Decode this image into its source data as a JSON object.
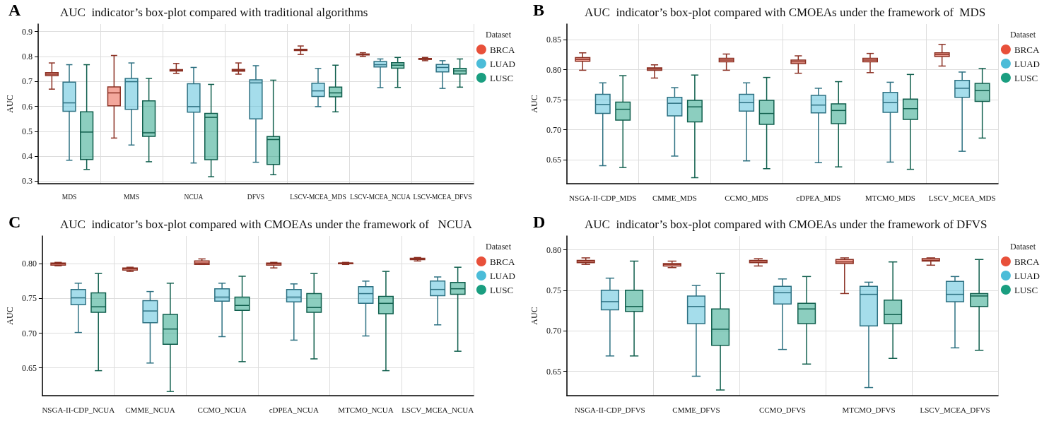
{
  "chart_data": [
    {
      "type": "box",
      "annotations": [
        "A"
      ],
      "title": "AUC  indicator’s box-plot compared with traditional algorithms",
      "ylabel": "AUC",
      "legend_title": "Dataset",
      "legend": "right",
      "grid": true,
      "categories": [
        "MDS",
        "MMS",
        "NCUA",
        "DFVS",
        "LSCV-MCEA_MDS",
        "LSCV-MCEA_NCUA",
        "LSCV-MCEA_DFVS"
      ],
      "ylim": [
        0.29,
        0.93
      ],
      "yticks": [
        0.3,
        0.4,
        0.5,
        0.6,
        0.7,
        0.8,
        0.9
      ],
      "series": [
        {
          "name": "BRCA",
          "color": "#e8503a",
          "boxes": [
            {
              "low": 0.669,
              "q1": 0.723,
              "median": 0.729,
              "q3": 0.735,
              "high": 0.774
            },
            {
              "low": 0.473,
              "q1": 0.602,
              "median": 0.654,
              "q3": 0.678,
              "high": 0.804
            },
            {
              "low": 0.732,
              "q1": 0.742,
              "median": 0.745,
              "q3": 0.747,
              "high": 0.772
            },
            {
              "low": 0.729,
              "q1": 0.741,
              "median": 0.745,
              "q3": 0.748,
              "high": 0.774
            },
            {
              "low": 0.808,
              "q1": 0.824,
              "median": 0.827,
              "q3": 0.829,
              "high": 0.842
            },
            {
              "low": 0.8,
              "q1": 0.806,
              "median": 0.808,
              "q3": 0.81,
              "high": 0.815
            },
            {
              "low": 0.783,
              "q1": 0.788,
              "median": 0.79,
              "q3": 0.792,
              "high": 0.796
            }
          ]
        },
        {
          "name": "LUAD",
          "color": "#4bbcd8",
          "boxes": [
            {
              "low": 0.384,
              "q1": 0.58,
              "median": 0.614,
              "q3": 0.697,
              "high": 0.767
            },
            {
              "low": 0.445,
              "q1": 0.588,
              "median": 0.699,
              "q3": 0.712,
              "high": 0.774
            },
            {
              "low": 0.373,
              "q1": 0.577,
              "median": 0.599,
              "q3": 0.691,
              "high": 0.756
            },
            {
              "low": 0.376,
              "q1": 0.55,
              "median": 0.694,
              "q3": 0.706,
              "high": 0.763
            },
            {
              "low": 0.599,
              "q1": 0.64,
              "median": 0.662,
              "q3": 0.693,
              "high": 0.752
            },
            {
              "low": 0.675,
              "q1": 0.758,
              "median": 0.767,
              "q3": 0.78,
              "high": 0.79
            },
            {
              "low": 0.672,
              "q1": 0.738,
              "median": 0.756,
              "q3": 0.768,
              "high": 0.783
            }
          ]
        },
        {
          "name": "LUSC",
          "color": "#1a9e80",
          "boxes": [
            {
              "low": 0.347,
              "q1": 0.387,
              "median": 0.497,
              "q3": 0.578,
              "high": 0.767
            },
            {
              "low": 0.378,
              "q1": 0.48,
              "median": 0.494,
              "q3": 0.622,
              "high": 0.712
            },
            {
              "low": 0.318,
              "q1": 0.386,
              "median": 0.556,
              "q3": 0.572,
              "high": 0.688
            },
            {
              "low": 0.326,
              "q1": 0.367,
              "median": 0.467,
              "q3": 0.479,
              "high": 0.705
            },
            {
              "low": 0.578,
              "q1": 0.638,
              "median": 0.654,
              "q3": 0.677,
              "high": 0.765
            },
            {
              "low": 0.676,
              "q1": 0.753,
              "median": 0.765,
              "q3": 0.775,
              "high": 0.796
            },
            {
              "low": 0.677,
              "q1": 0.73,
              "median": 0.742,
              "q3": 0.752,
              "high": 0.79
            }
          ]
        }
      ]
    },
    {
      "type": "box",
      "annotations": [
        "B"
      ],
      "title": "AUC  indicator’s box-plot compared with CMOEAs under the framework of  MDS",
      "ylabel": "AUC",
      "legend_title": "Dataset",
      "legend": "right",
      "grid": true,
      "categories": [
        "NSGA-II-CDP_MDS",
        "CMME_MDS",
        "CCMO_MDS",
        "cDPEA_MDS",
        "MTCMO_MDS",
        "LSCV_MCEA_MDS"
      ],
      "ylim": [
        0.61,
        0.876
      ],
      "yticks": [
        {
          "value": 0.65,
          "label": "0.65"
        },
        {
          "value": 0.7,
          "label": "0.70"
        },
        {
          "value": 0.75,
          "label": "0.75"
        },
        {
          "value": 0.8,
          "label": "0.80"
        },
        {
          "value": 0.85,
          "label": "0.85"
        }
      ],
      "series": [
        {
          "name": "BRCA",
          "color": "#e8503a",
          "boxes": [
            {
              "low": 0.799,
              "q1": 0.814,
              "median": 0.817,
              "q3": 0.82,
              "high": 0.828
            },
            {
              "low": 0.786,
              "q1": 0.799,
              "median": 0.801,
              "q3": 0.803,
              "high": 0.808
            },
            {
              "low": 0.799,
              "q1": 0.813,
              "median": 0.816,
              "q3": 0.819,
              "high": 0.826
            },
            {
              "low": 0.794,
              "q1": 0.81,
              "median": 0.813,
              "q3": 0.816,
              "high": 0.823
            },
            {
              "low": 0.795,
              "q1": 0.813,
              "median": 0.816,
              "q3": 0.819,
              "high": 0.827
            },
            {
              "low": 0.806,
              "q1": 0.822,
              "median": 0.825,
              "q3": 0.828,
              "high": 0.842
            }
          ]
        },
        {
          "name": "LUAD",
          "color": "#4bbcd8",
          "boxes": [
            {
              "low": 0.64,
              "q1": 0.727,
              "median": 0.742,
              "q3": 0.759,
              "high": 0.778
            },
            {
              "low": 0.656,
              "q1": 0.723,
              "median": 0.744,
              "q3": 0.754,
              "high": 0.77
            },
            {
              "low": 0.648,
              "q1": 0.731,
              "median": 0.745,
              "q3": 0.759,
              "high": 0.778
            },
            {
              "low": 0.645,
              "q1": 0.728,
              "median": 0.741,
              "q3": 0.757,
              "high": 0.769
            },
            {
              "low": 0.646,
              "q1": 0.729,
              "median": 0.745,
              "q3": 0.762,
              "high": 0.779
            },
            {
              "low": 0.664,
              "q1": 0.754,
              "median": 0.769,
              "q3": 0.782,
              "high": 0.796
            }
          ]
        },
        {
          "name": "LUSC",
          "color": "#1a9e80",
          "boxes": [
            {
              "low": 0.637,
              "q1": 0.716,
              "median": 0.734,
              "q3": 0.746,
              "high": 0.79
            },
            {
              "low": 0.62,
              "q1": 0.713,
              "median": 0.738,
              "q3": 0.749,
              "high": 0.791
            },
            {
              "low": 0.635,
              "q1": 0.709,
              "median": 0.727,
              "q3": 0.749,
              "high": 0.787
            },
            {
              "low": 0.638,
              "q1": 0.71,
              "median": 0.732,
              "q3": 0.743,
              "high": 0.78
            },
            {
              "low": 0.634,
              "q1": 0.717,
              "median": 0.735,
              "q3": 0.751,
              "high": 0.792
            },
            {
              "low": 0.686,
              "q1": 0.747,
              "median": 0.765,
              "q3": 0.777,
              "high": 0.802
            }
          ]
        }
      ]
    },
    {
      "type": "box",
      "annotations": [
        "C"
      ],
      "title": "AUC  indicator’s box-plot compared with CMOEAs under the framework of   NCUA",
      "ylabel": "AUC",
      "legend_title": "Dataset",
      "legend": "right",
      "grid": true,
      "categories": [
        "NSGA-II-CDP_NCUA",
        "CMME_NCUA",
        "CCMO_NCUA",
        "cDPEA_NCUA",
        "MTCMO_NCUA",
        "LSCV_MCEA_NCUA"
      ],
      "ylim": [
        0.61,
        0.84
      ],
      "yticks": [
        {
          "value": 0.65,
          "label": "0.65"
        },
        {
          "value": 0.7,
          "label": "0.70"
        },
        {
          "value": 0.75,
          "label": "0.75"
        },
        {
          "value": 0.8,
          "label": "0.80"
        }
      ],
      "series": [
        {
          "name": "BRCA",
          "color": "#e8503a",
          "boxes": [
            {
              "low": 0.797,
              "q1": 0.798,
              "median": 0.8,
              "q3": 0.801,
              "high": 0.802
            },
            {
              "low": 0.789,
              "q1": 0.791,
              "median": 0.793,
              "q3": 0.794,
              "high": 0.795
            },
            {
              "low": 0.799,
              "q1": 0.799,
              "median": 0.801,
              "q3": 0.804,
              "high": 0.807
            },
            {
              "low": 0.794,
              "q1": 0.798,
              "median": 0.8,
              "q3": 0.801,
              "high": 0.802
            },
            {
              "low": 0.799,
              "q1": 0.8,
              "median": 0.801,
              "q3": 0.801,
              "high": 0.802
            },
            {
              "low": 0.804,
              "q1": 0.806,
              "median": 0.807,
              "q3": 0.808,
              "high": 0.809
            }
          ]
        },
        {
          "name": "LUAD",
          "color": "#4bbcd8",
          "boxes": [
            {
              "low": 0.701,
              "q1": 0.741,
              "median": 0.751,
              "q3": 0.763,
              "high": 0.772
            },
            {
              "low": 0.657,
              "q1": 0.715,
              "median": 0.732,
              "q3": 0.747,
              "high": 0.76
            },
            {
              "low": 0.695,
              "q1": 0.746,
              "median": 0.752,
              "q3": 0.764,
              "high": 0.772
            },
            {
              "low": 0.69,
              "q1": 0.745,
              "median": 0.752,
              "q3": 0.763,
              "high": 0.771
            },
            {
              "low": 0.696,
              "q1": 0.743,
              "median": 0.757,
              "q3": 0.767,
              "high": 0.775
            },
            {
              "low": 0.712,
              "q1": 0.754,
              "median": 0.763,
              "q3": 0.775,
              "high": 0.781
            }
          ]
        },
        {
          "name": "LUSC",
          "color": "#1a9e80",
          "boxes": [
            {
              "low": 0.646,
              "q1": 0.73,
              "median": 0.738,
              "q3": 0.758,
              "high": 0.786
            },
            {
              "low": 0.616,
              "q1": 0.684,
              "median": 0.706,
              "q3": 0.727,
              "high": 0.772
            },
            {
              "low": 0.659,
              "q1": 0.733,
              "median": 0.74,
              "q3": 0.752,
              "high": 0.782
            },
            {
              "low": 0.663,
              "q1": 0.73,
              "median": 0.737,
              "q3": 0.757,
              "high": 0.786
            },
            {
              "low": 0.646,
              "q1": 0.728,
              "median": 0.743,
              "q3": 0.753,
              "high": 0.789
            },
            {
              "low": 0.674,
              "q1": 0.756,
              "median": 0.764,
              "q3": 0.773,
              "high": 0.795
            }
          ]
        }
      ]
    },
    {
      "type": "box",
      "annotations": [
        "D"
      ],
      "title": "AUC  indicator’s box-plot compared with CMOEAs under the framework of DFVS",
      "ylabel": "AUC",
      "legend_title": "Dataset",
      "legend": "right",
      "grid": true,
      "categories": [
        "NSGA-II-CDP_DFVS",
        "CMME_DFVS",
        "CCMO_DFVS",
        "MTCMO_DFVS",
        "LSCV_MCEA_DFVS"
      ],
      "ylim": [
        0.62,
        0.817
      ],
      "yticks": [
        {
          "value": 0.65,
          "label": "0.65"
        },
        {
          "value": 0.7,
          "label": "0.70"
        },
        {
          "value": 0.75,
          "label": "0.75"
        },
        {
          "value": 0.8,
          "label": "0.80"
        }
      ],
      "series": [
        {
          "name": "BRCA",
          "color": "#e8503a",
          "boxes": [
            {
              "low": 0.782,
              "q1": 0.784,
              "median": 0.786,
              "q3": 0.787,
              "high": 0.79
            },
            {
              "low": 0.778,
              "q1": 0.78,
              "median": 0.782,
              "q3": 0.783,
              "high": 0.786
            },
            {
              "low": 0.78,
              "q1": 0.784,
              "median": 0.786,
              "q3": 0.787,
              "high": 0.789
            },
            {
              "low": 0.746,
              "q1": 0.783,
              "median": 0.785,
              "q3": 0.788,
              "high": 0.79
            },
            {
              "low": 0.781,
              "q1": 0.786,
              "median": 0.787,
              "q3": 0.789,
              "high": 0.79
            }
          ]
        },
        {
          "name": "LUAD",
          "color": "#4bbcd8",
          "boxes": [
            {
              "low": 0.669,
              "q1": 0.726,
              "median": 0.736,
              "q3": 0.75,
              "high": 0.765
            },
            {
              "low": 0.644,
              "q1": 0.709,
              "median": 0.73,
              "q3": 0.743,
              "high": 0.756
            },
            {
              "low": 0.677,
              "q1": 0.733,
              "median": 0.747,
              "q3": 0.755,
              "high": 0.764
            },
            {
              "low": 0.63,
              "q1": 0.706,
              "median": 0.745,
              "q3": 0.755,
              "high": 0.76
            },
            {
              "low": 0.679,
              "q1": 0.736,
              "median": 0.745,
              "q3": 0.761,
              "high": 0.767
            }
          ]
        },
        {
          "name": "LUSC",
          "color": "#1a9e80",
          "boxes": [
            {
              "low": 0.669,
              "q1": 0.724,
              "median": 0.73,
              "q3": 0.75,
              "high": 0.786
            },
            {
              "low": 0.627,
              "q1": 0.682,
              "median": 0.702,
              "q3": 0.727,
              "high": 0.771
            },
            {
              "low": 0.659,
              "q1": 0.709,
              "median": 0.727,
              "q3": 0.734,
              "high": 0.767
            },
            {
              "low": 0.666,
              "q1": 0.709,
              "median": 0.72,
              "q3": 0.738,
              "high": 0.785
            },
            {
              "low": 0.676,
              "q1": 0.73,
              "median": 0.743,
              "q3": 0.746,
              "high": 0.788
            }
          ]
        }
      ]
    }
  ]
}
